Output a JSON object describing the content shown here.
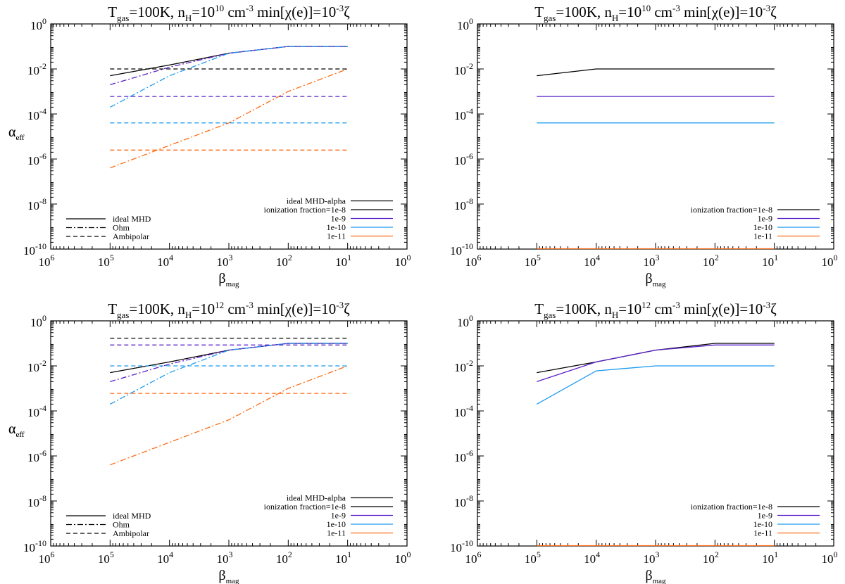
{
  "chart_data": [
    {
      "type": "line",
      "title": "T<sub>gas</sub>=100K, n<sub>H</sub>=10<sup>10</sup> cm<sup>-3</sup> min[χ(e)]=10<sup>-3</sup>ζ",
      "title_plain": "Tgas=100K, nH=10^10 cm^-3 min[χ(e)]=10^-3ζ",
      "xlabel": "β",
      "xlabel_sub": "mag",
      "ylabel": "α",
      "ylabel_sub": "eff",
      "x_scale": "log",
      "y_scale": "log",
      "x_reversed": true,
      "xlim": [
        1000000,
        1
      ],
      "ylim": [
        1e-10,
        1
      ],
      "x_ticks": [
        {
          "value": 1000000,
          "exp": "6"
        },
        {
          "value": 100000,
          "exp": "5"
        },
        {
          "value": 10000,
          "exp": "4"
        },
        {
          "value": 1000,
          "exp": "3"
        },
        {
          "value": 100,
          "exp": "2"
        },
        {
          "value": 10,
          "exp": "1"
        },
        {
          "value": 1,
          "exp": "0"
        }
      ],
      "y_ticks": [
        {
          "value": 1e-10,
          "exp": "-10"
        },
        {
          "value": 1e-08,
          "exp": "-8"
        },
        {
          "value": 1e-06,
          "exp": "-6"
        },
        {
          "value": 0.0001,
          "exp": "-4"
        },
        {
          "value": 0.01,
          "exp": "-2"
        },
        {
          "value": 1,
          "exp": "0"
        }
      ],
      "legend_color": {
        "position": "bottom-right",
        "entries": [
          {
            "label": "ideal MHD-alpha",
            "color": "#000000"
          },
          {
            "label": "ionization fraction=1e-8",
            "color": "#000000"
          },
          {
            "label": "1e-9",
            "color": "#5a20c8"
          },
          {
            "label": "1e-10",
            "color": "#1a9af0"
          },
          {
            "label": "1e-11",
            "color": "#ff6a14"
          }
        ]
      },
      "legend_style": {
        "position": "bottom-left",
        "entries": [
          {
            "label": "ideal MHD",
            "dash": "solid"
          },
          {
            "label": "Ohm",
            "dash": "dashdot"
          },
          {
            "label": "Ambipolar",
            "dash": "dashed"
          }
        ]
      },
      "series": [
        {
          "color": "#000000",
          "dash": "solid",
          "x": [
            100000,
            10000,
            1000,
            100,
            10
          ],
          "y": [
            0.005,
            0.015,
            0.05,
            0.1,
            0.1
          ]
        },
        {
          "color": "#5a20c8",
          "dash": "solid",
          "x": [
            1000,
            100,
            10
          ],
          "y": [
            0.05,
            0.1,
            0.1
          ]
        },
        {
          "color": "#5a20c8",
          "dash": "dashdot",
          "x": [
            100000,
            10000,
            1000
          ],
          "y": [
            0.002,
            0.012,
            0.05
          ]
        },
        {
          "color": "#1a9af0",
          "dash": "dashdot",
          "x": [
            100000,
            10000,
            1000,
            100,
            10
          ],
          "y": [
            0.0002,
            0.005,
            0.05,
            0.1,
            0.1
          ]
        },
        {
          "color": "#ff6a14",
          "dash": "dashdot",
          "x": [
            100000,
            1000,
            100,
            10
          ],
          "y": [
            4e-07,
            4e-05,
            0.001,
            0.01
          ]
        },
        {
          "color": "#000000",
          "dash": "dashed",
          "x": [
            100000,
            10
          ],
          "y": [
            0.01,
            0.01
          ]
        },
        {
          "color": "#5a20c8",
          "dash": "dashed",
          "x": [
            100000,
            10
          ],
          "y": [
            0.0006,
            0.0006
          ]
        },
        {
          "color": "#1a9af0",
          "dash": "dashed",
          "x": [
            100000,
            10
          ],
          "y": [
            4e-05,
            4e-05
          ]
        },
        {
          "color": "#ff6a14",
          "dash": "dashed",
          "x": [
            100000,
            10
          ],
          "y": [
            2.5e-06,
            2.5e-06
          ]
        }
      ]
    },
    {
      "type": "line",
      "title": "T<sub>gas</sub>=100K, n<sub>H</sub>=10<sup>10</sup> cm<sup>-3</sup> min[χ(e)]=10<sup>-3</sup>ζ",
      "title_plain": "Tgas=100K, nH=10^10 cm^-3 min[χ(e)]=10^-3ζ",
      "xlabel": "β",
      "xlabel_sub": "mag",
      "ylabel": "α",
      "ylabel_sub": "eff",
      "x_scale": "log",
      "y_scale": "log",
      "x_reversed": true,
      "xlim": [
        1000000,
        1
      ],
      "ylim": [
        1e-10,
        1
      ],
      "x_ticks": [
        {
          "value": 1000000,
          "exp": "6"
        },
        {
          "value": 100000,
          "exp": "5"
        },
        {
          "value": 10000,
          "exp": "4"
        },
        {
          "value": 1000,
          "exp": "3"
        },
        {
          "value": 100,
          "exp": "2"
        },
        {
          "value": 10,
          "exp": "1"
        },
        {
          "value": 1,
          "exp": "0"
        }
      ],
      "y_ticks": [
        {
          "value": 1e-10,
          "exp": "-10"
        },
        {
          "value": 1e-08,
          "exp": "-8"
        },
        {
          "value": 1e-06,
          "exp": "-6"
        },
        {
          "value": 0.0001,
          "exp": "-4"
        },
        {
          "value": 0.01,
          "exp": "-2"
        },
        {
          "value": 1,
          "exp": "0"
        }
      ],
      "legend_color": {
        "position": "bottom-right",
        "entries": [
          {
            "label": "ionization fraction=1e-8",
            "color": "#000000"
          },
          {
            "label": "1e-9",
            "color": "#5a20c8"
          },
          {
            "label": "1e-10",
            "color": "#1a9af0"
          },
          {
            "label": "1e-11",
            "color": "#ff6a14"
          }
        ]
      },
      "series": [
        {
          "color": "#000000",
          "dash": "solid",
          "x": [
            100000,
            10000,
            1000,
            100,
            10
          ],
          "y": [
            0.005,
            0.01,
            0.01,
            0.01,
            0.01
          ]
        },
        {
          "color": "#5a20c8",
          "dash": "solid",
          "x": [
            100000,
            10
          ],
          "y": [
            0.0006,
            0.0006
          ]
        },
        {
          "color": "#1a9af0",
          "dash": "solid",
          "x": [
            100000,
            10
          ],
          "y": [
            4e-05,
            4e-05
          ]
        },
        {
          "color": "#ff6a14",
          "dash": "solid",
          "x": [
            100000,
            10
          ],
          "y": [
            1e-10,
            1e-10
          ]
        }
      ]
    },
    {
      "type": "line",
      "title": "T<sub>gas</sub>=100K, n<sub>H</sub>=10<sup>12</sup> cm<sup>-3</sup> min[χ(e)]=10<sup>-3</sup>ζ",
      "title_plain": "Tgas=100K, nH=10^12 cm^-3 min[χ(e)]=10^-3ζ",
      "xlabel": "β",
      "xlabel_sub": "mag",
      "ylabel": "α",
      "ylabel_sub": "eff",
      "x_scale": "log",
      "y_scale": "log",
      "x_reversed": true,
      "xlim": [
        1000000,
        1
      ],
      "ylim": [
        1e-10,
        1
      ],
      "x_ticks": [
        {
          "value": 1000000,
          "exp": "6"
        },
        {
          "value": 100000,
          "exp": "5"
        },
        {
          "value": 10000,
          "exp": "4"
        },
        {
          "value": 1000,
          "exp": "3"
        },
        {
          "value": 100,
          "exp": "2"
        },
        {
          "value": 10,
          "exp": "1"
        },
        {
          "value": 1,
          "exp": "0"
        }
      ],
      "y_ticks": [
        {
          "value": 1e-10,
          "exp": "-10"
        },
        {
          "value": 1e-08,
          "exp": "-8"
        },
        {
          "value": 1e-06,
          "exp": "-6"
        },
        {
          "value": 0.0001,
          "exp": "-4"
        },
        {
          "value": 0.01,
          "exp": "-2"
        },
        {
          "value": 1,
          "exp": "0"
        }
      ],
      "legend_color": {
        "position": "bottom-right",
        "entries": [
          {
            "label": "ideal MHD-alpha",
            "color": "#000000"
          },
          {
            "label": "ionization fraction=1e-8",
            "color": "#000000"
          },
          {
            "label": "1e-9",
            "color": "#5a20c8"
          },
          {
            "label": "1e-10",
            "color": "#1a9af0"
          },
          {
            "label": "1e-11",
            "color": "#ff6a14"
          }
        ]
      },
      "legend_style": {
        "position": "bottom-left",
        "entries": [
          {
            "label": "ideal MHD",
            "dash": "solid"
          },
          {
            "label": "Ohm",
            "dash": "dashdot"
          },
          {
            "label": "Ambipolar",
            "dash": "dashed"
          }
        ]
      },
      "series": [
        {
          "color": "#000000",
          "dash": "solid",
          "x": [
            100000,
            10000,
            1000,
            100,
            10
          ],
          "y": [
            0.005,
            0.015,
            0.05,
            0.1,
            0.1
          ]
        },
        {
          "color": "#5a20c8",
          "dash": "solid",
          "x": [
            1000,
            100,
            10
          ],
          "y": [
            0.05,
            0.1,
            0.1
          ]
        },
        {
          "color": "#5a20c8",
          "dash": "dashdot",
          "x": [
            100000,
            10000,
            1000
          ],
          "y": [
            0.002,
            0.012,
            0.05
          ]
        },
        {
          "color": "#1a9af0",
          "dash": "dashdot",
          "x": [
            100000,
            10000,
            1000,
            100,
            10
          ],
          "y": [
            0.0002,
            0.005,
            0.05,
            0.1,
            0.1
          ]
        },
        {
          "color": "#ff6a14",
          "dash": "dashdot",
          "x": [
            100000,
            1000,
            100,
            10
          ],
          "y": [
            4e-07,
            4e-05,
            0.001,
            0.01
          ]
        },
        {
          "color": "#000000",
          "dash": "dashed",
          "x": [
            100000,
            10
          ],
          "y": [
            0.17,
            0.17
          ]
        },
        {
          "color": "#5a20c8",
          "dash": "dashed",
          "x": [
            100000,
            10
          ],
          "y": [
            0.085,
            0.085
          ]
        },
        {
          "color": "#1a9af0",
          "dash": "dashed",
          "x": [
            100000,
            10
          ],
          "y": [
            0.01,
            0.01
          ]
        },
        {
          "color": "#ff6a14",
          "dash": "dashed",
          "x": [
            100000,
            10
          ],
          "y": [
            0.0006,
            0.0006
          ]
        }
      ]
    },
    {
      "type": "line",
      "title": "T<sub>gas</sub>=100K, n<sub>H</sub>=10<sup>12</sup> cm<sup>-3</sup> min[χ(e)]=10<sup>-3</sup>ζ",
      "title_plain": "Tgas=100K, nH=10^12 cm^-3 min[χ(e)]=10^-3ζ",
      "xlabel": "β",
      "xlabel_sub": "mag",
      "ylabel": "α",
      "ylabel_sub": "eff",
      "x_scale": "log",
      "y_scale": "log",
      "x_reversed": true,
      "xlim": [
        1000000,
        1
      ],
      "ylim": [
        1e-10,
        1
      ],
      "x_ticks": [
        {
          "value": 1000000,
          "exp": "6"
        },
        {
          "value": 100000,
          "exp": "5"
        },
        {
          "value": 10000,
          "exp": "4"
        },
        {
          "value": 1000,
          "exp": "3"
        },
        {
          "value": 100,
          "exp": "2"
        },
        {
          "value": 10,
          "exp": "1"
        },
        {
          "value": 1,
          "exp": "0"
        }
      ],
      "y_ticks": [
        {
          "value": 1e-10,
          "exp": "-10"
        },
        {
          "value": 1e-08,
          "exp": "-8"
        },
        {
          "value": 1e-06,
          "exp": "-6"
        },
        {
          "value": 0.0001,
          "exp": "-4"
        },
        {
          "value": 0.01,
          "exp": "-2"
        },
        {
          "value": 1,
          "exp": "0"
        }
      ],
      "legend_color": {
        "position": "bottom-right",
        "entries": [
          {
            "label": "ionization fraction=1e-8",
            "color": "#000000"
          },
          {
            "label": "1e-9",
            "color": "#5a20c8"
          },
          {
            "label": "1e-10",
            "color": "#1a9af0"
          },
          {
            "label": "1e-11",
            "color": "#ff6a14"
          }
        ]
      },
      "series": [
        {
          "color": "#000000",
          "dash": "solid",
          "x": [
            100000,
            10000,
            1000,
            100,
            10
          ],
          "y": [
            0.005,
            0.015,
            0.05,
            0.1,
            0.1
          ]
        },
        {
          "color": "#5a20c8",
          "dash": "solid",
          "x": [
            100000,
            10000,
            1000,
            100,
            10
          ],
          "y": [
            0.002,
            0.015,
            0.05,
            0.085,
            0.085
          ]
        },
        {
          "color": "#1a9af0",
          "dash": "solid",
          "x": [
            100000,
            10000,
            1000,
            100,
            10
          ],
          "y": [
            0.0002,
            0.006,
            0.01,
            0.01,
            0.01
          ]
        },
        {
          "color": "#ff6a14",
          "dash": "solid",
          "x": [
            100000,
            10
          ],
          "y": [
            1e-10,
            1e-10
          ]
        }
      ]
    }
  ]
}
